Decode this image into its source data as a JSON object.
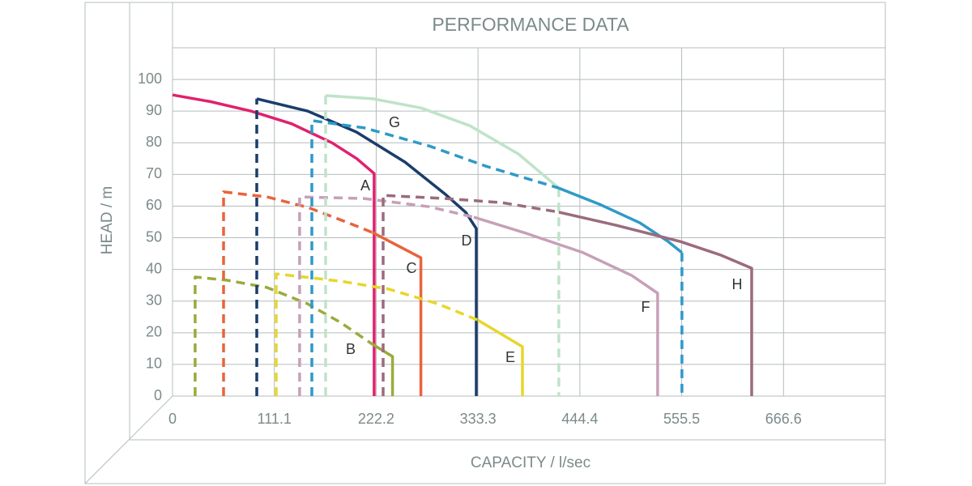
{
  "chart_data": {
    "type": "line",
    "title": "PERFORMANCE DATA",
    "x_label": "CAPACITY / l/sec",
    "y_label": "HEAD / m",
    "xlim": [
      0,
      777.7
    ],
    "ylim": [
      0,
      110
    ],
    "xticks": [
      0,
      111.1,
      222.2,
      333.3,
      444.4,
      555.5,
      666.6
    ],
    "yticks": [
      0,
      10,
      20,
      30,
      40,
      50,
      60,
      70,
      80,
      90,
      100
    ],
    "grid": true,
    "series": [
      {
        "name": "A",
        "color": "#e0216e",
        "segments": [
          {
            "style": "solid",
            "x": [
              0,
              41.5,
              85.7,
              130,
              174,
              201,
              220,
              220
            ],
            "values": [
              95.1,
              93,
              90,
              86,
              80,
              75,
              70.3,
              0
            ]
          }
        ]
      },
      {
        "name": "B",
        "color": "#9aab3c",
        "segments": [
          {
            "style": "dashed",
            "x": [
              24.7,
              24.7,
              59,
              103,
              147,
              183,
              218
            ],
            "values": [
              0,
              37.6,
              36.6,
              34.3,
              29.2,
              23.3,
              16.4
            ]
          },
          {
            "style": "solid",
            "x": [
              218,
              240,
              240
            ],
            "values": [
              16.4,
              12.5,
              0
            ]
          }
        ]
      },
      {
        "name": "C",
        "color": "#e8643c",
        "segments": [
          {
            "style": "dashed",
            "x": [
              55.7,
              55.7,
              103,
              147.6,
              192,
              218
            ],
            "values": [
              0,
              64.5,
              62.9,
              59.6,
              54.7,
              51.7
            ]
          },
          {
            "style": "solid",
            "x": [
              218,
              271,
              271
            ],
            "values": [
              51.7,
              43.7,
              0
            ]
          }
        ]
      },
      {
        "name": "D",
        "color": "#1a3d6b",
        "segments": [
          {
            "style": "dashed",
            "x": [
              91.9,
              91.9
            ],
            "values": [
              0,
              93.9
            ]
          },
          {
            "style": "solid",
            "x": [
              91.9,
              147.6,
              200.6,
              253.6,
              297.8,
              320,
              331.4,
              331.4
            ],
            "values": [
              93.9,
              90,
              83.4,
              73.9,
              63.7,
              58,
              52.9,
              0
            ]
          }
        ]
      },
      {
        "name": "E",
        "color": "#e8d62a",
        "segments": [
          {
            "style": "dashed",
            "x": [
              113.1,
              113.1,
              183,
              236,
              289,
              333.2
            ],
            "values": [
              0,
              38.6,
              36.3,
              33.8,
              29.2,
              24
            ]
          },
          {
            "style": "solid",
            "x": [
              333.2,
              381.8,
              381.8
            ],
            "values": [
              24,
              15.6,
              0
            ]
          }
        ]
      },
      {
        "name": "F",
        "color": "#c7a0b8",
        "segments": [
          {
            "style": "dashed",
            "x": [
              138.7,
              138.7,
              209.4,
              280,
              328.7
            ],
            "values": [
              0,
              62.9,
              62.4,
              59.8,
              56.5
            ]
          },
          {
            "style": "solid",
            "x": [
              328.7,
              386,
              448,
              501,
              529.3,
              529.3
            ],
            "values": [
              56.5,
              51.4,
              45.3,
              38.1,
              32.5,
              0
            ]
          }
        ]
      },
      {
        "color": "#bfe3c8",
        "segments": [
          {
            "style": "dashed",
            "x": [
              167,
              167
            ],
            "values": [
              0,
              94.9
            ]
          },
          {
            "style": "solid",
            "x": [
              167,
              218.3,
              271.3,
              324.3,
              377.3,
              421.5
            ],
            "values": [
              94.9,
              93.9,
              91,
              85.4,
              76.5,
              65.7
            ]
          },
          {
            "style": "dashed",
            "x": [
              421.5,
              421.5
            ],
            "values": [
              65.7,
              0
            ]
          }
        ]
      },
      {
        "name": "G",
        "color": "#2e9ac8",
        "segments": [
          {
            "style": "dashed",
            "x": [
              152,
              152,
              209.4,
              280,
              342,
              421.5
            ],
            "values": [
              0,
              87,
              84.7,
              79,
              72.6,
              65.7
            ]
          },
          {
            "style": "solid",
            "x": [
              421.5,
              465.7,
              510,
              540.8,
              555.8
            ],
            "values": [
              65.7,
              60.6,
              54.7,
              48.8,
              45.3
            ]
          },
          {
            "style": "dashed",
            "x": [
              555.8,
              555.8
            ],
            "values": [
              45.3,
              0
            ]
          }
        ]
      },
      {
        "name": "H",
        "color": "#9b6b7e",
        "segments": [
          {
            "style": "dashed",
            "x": [
              229.8,
              229.8,
              297.8,
              359.7,
              421.5
            ],
            "values": [
              0,
              63.4,
              62.4,
              61.1,
              58.1
            ]
          },
          {
            "style": "solid",
            "x": [
              421.5,
              483.4,
              554,
              598.3,
              631.9,
              631.9
            ],
            "values": [
              58.1,
              54,
              48.8,
              44.5,
              40.4,
              0
            ]
          }
        ]
      }
    ]
  }
}
